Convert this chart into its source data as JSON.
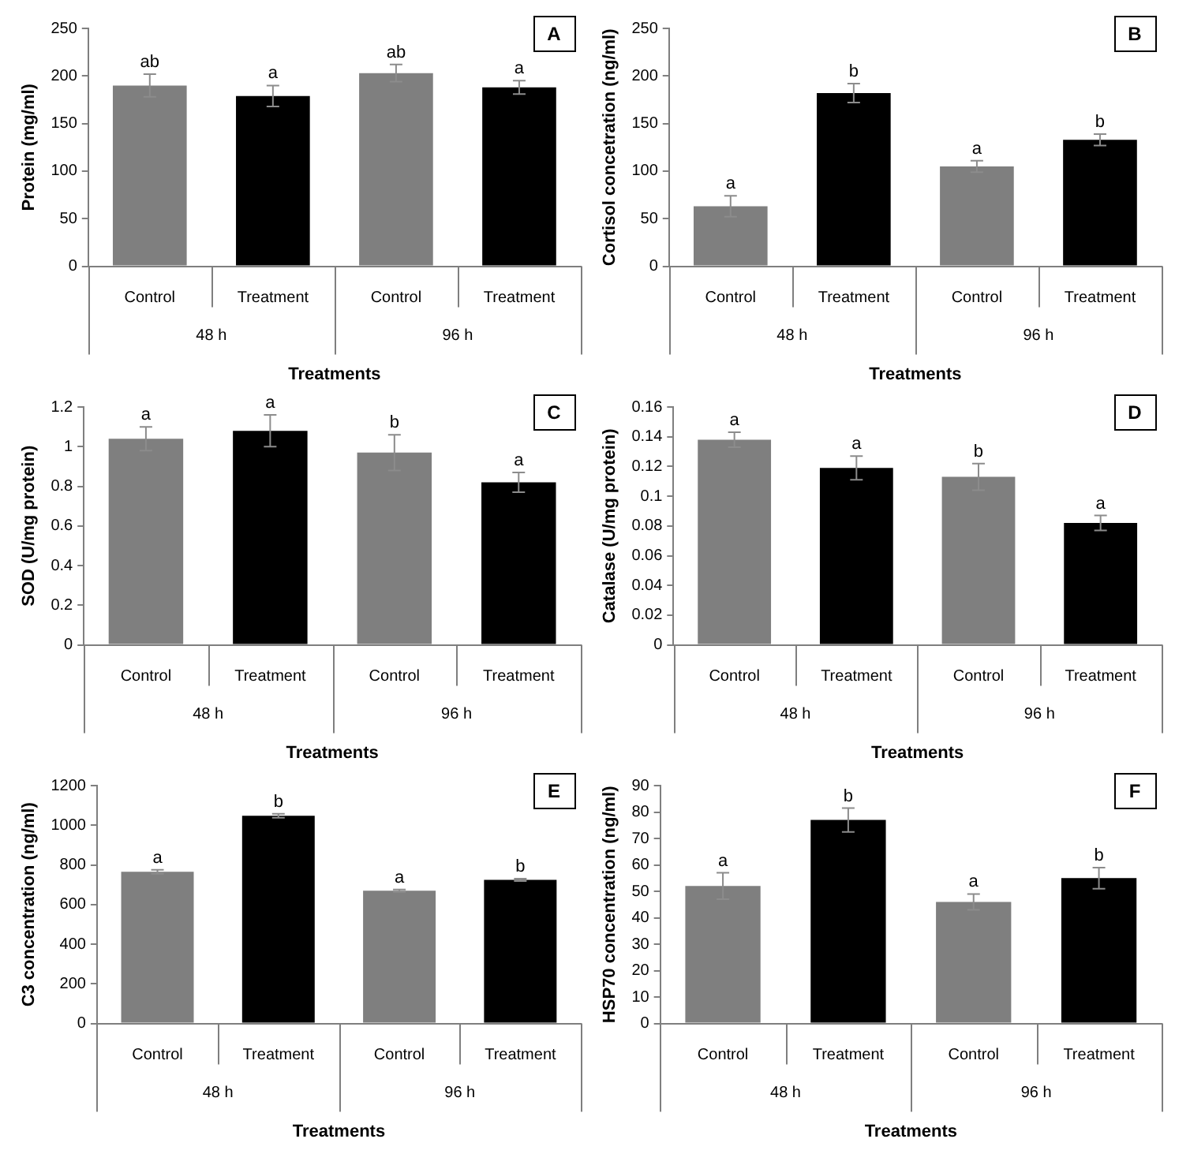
{
  "chart_data": [
    {
      "type": "bar",
      "title": "A",
      "ylabel": "Protein (mg/ml)",
      "xlabel": "Treatments",
      "categories": [
        "Control",
        "Treatment",
        "Control",
        "Treatment"
      ],
      "values": [
        190,
        179,
        203,
        188
      ],
      "errors": [
        12,
        11,
        9,
        7
      ],
      "colors": [
        "#7f7f7f",
        "#000000",
        "#7f7f7f",
        "#000000"
      ],
      "ylim": [
        0,
        250
      ],
      "yticks": [
        0,
        50,
        100,
        150,
        200,
        250
      ],
      "annotations": [
        "ab",
        "a",
        "ab",
        "a",
        "48 h",
        "96 h"
      ]
    },
    {
      "type": "bar",
      "title": "B",
      "ylabel": "Cortisol concetration (ng/ml)",
      "xlabel": "Treatments",
      "categories": [
        "Control",
        "Treatment",
        "Control",
        "Treatment"
      ],
      "values": [
        63,
        182,
        105,
        133
      ],
      "errors": [
        11,
        10,
        6,
        6
      ],
      "colors": [
        "#7f7f7f",
        "#000000",
        "#7f7f7f",
        "#000000"
      ],
      "ylim": [
        0,
        250
      ],
      "yticks": [
        0,
        50,
        100,
        150,
        200,
        250
      ],
      "annotations": [
        "a",
        "b",
        "a",
        "b",
        "48 h",
        "96 h"
      ]
    },
    {
      "type": "bar",
      "title": "C",
      "ylabel": "SOD (U/mg protein)",
      "xlabel": "Treatments",
      "categories": [
        "Control",
        "Treatment",
        "Control",
        "Treatment"
      ],
      "values": [
        1.04,
        1.08,
        0.97,
        0.82
      ],
      "errors": [
        0.06,
        0.08,
        0.09,
        0.05
      ],
      "colors": [
        "#7f7f7f",
        "#000000",
        "#7f7f7f",
        "#000000"
      ],
      "ylim": [
        0,
        1.2
      ],
      "yticks": [
        0,
        0.2,
        0.4,
        0.6,
        0.8,
        1,
        1.2
      ],
      "annotations": [
        "a",
        "a",
        "b",
        "a",
        "48 h",
        "96 h"
      ]
    },
    {
      "type": "bar",
      "title": "D",
      "ylabel": "Catalase (U/mg protein)",
      "xlabel": "Treatments",
      "categories": [
        "Control",
        "Treatment",
        "Control",
        "Treatment"
      ],
      "values": [
        0.138,
        0.119,
        0.113,
        0.082
      ],
      "errors": [
        0.005,
        0.008,
        0.009,
        0.005
      ],
      "colors": [
        "#7f7f7f",
        "#000000",
        "#7f7f7f",
        "#000000"
      ],
      "ylim": [
        0,
        0.16
      ],
      "yticks": [
        0,
        0.02,
        0.04,
        0.06,
        0.08,
        0.1,
        0.12,
        0.14,
        0.16
      ],
      "annotations": [
        "a",
        "a",
        "b",
        "a",
        "48 h",
        "96 h"
      ]
    },
    {
      "type": "bar",
      "title": "E",
      "ylabel": "C3 concentration (ng/ml)",
      "xlabel": "Treatments",
      "categories": [
        "Control",
        "Treatment",
        "Control",
        "Treatment"
      ],
      "values": [
        765,
        1048,
        670,
        725
      ],
      "errors": [
        10,
        10,
        6,
        6
      ],
      "colors": [
        "#7f7f7f",
        "#000000",
        "#7f7f7f",
        "#000000"
      ],
      "ylim": [
        0,
        1200
      ],
      "yticks": [
        0,
        200,
        400,
        600,
        800,
        1000,
        1200
      ],
      "annotations": [
        "a",
        "b",
        "a",
        "b",
        "48 h",
        "96 h"
      ]
    },
    {
      "type": "bar",
      "title": "F",
      "ylabel": "HSP70 concentration (ng/ml)",
      "xlabel": "Treatments",
      "categories": [
        "Control",
        "Treatment",
        "Control",
        "Treatment"
      ],
      "values": [
        52,
        77,
        46,
        55
      ],
      "errors": [
        5,
        4.5,
        3,
        4
      ],
      "colors": [
        "#7f7f7f",
        "#000000",
        "#7f7f7f",
        "#000000"
      ],
      "ylim": [
        0,
        90
      ],
      "yticks": [
        0,
        10,
        20,
        30,
        40,
        50,
        60,
        70,
        80,
        90
      ],
      "annotations": [
        "a",
        "b",
        "a",
        "b",
        "48 h",
        "96 h"
      ]
    }
  ]
}
